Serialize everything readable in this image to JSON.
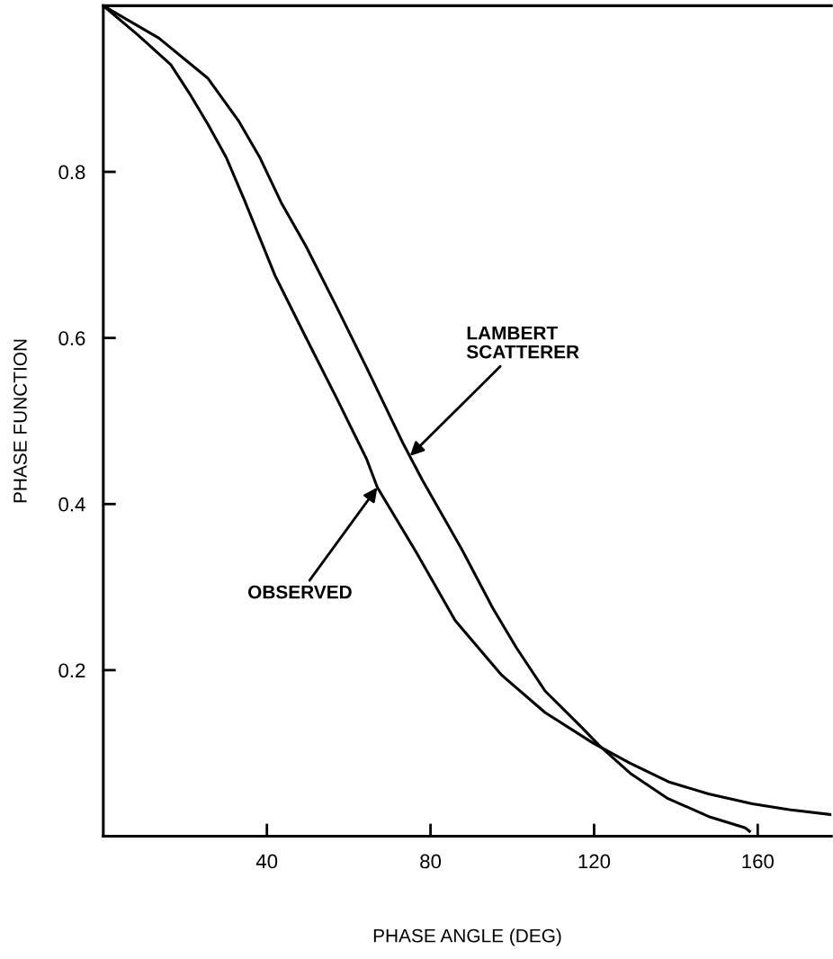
{
  "chart_data": {
    "type": "line",
    "xlabel": "PHASE ANGLE (DEG)",
    "ylabel": "PHASE FUNCTION",
    "xlim": [
      0,
      178
    ],
    "ylim": [
      0,
      1
    ],
    "xticks": [
      40,
      80,
      120,
      160
    ],
    "yticks": [
      0.2,
      0.4,
      {
        "value": 0.6,
        "label": "0.6"
      },
      0.8
    ],
    "grid": false,
    "legend": false,
    "marker": "none",
    "line_style": "solid",
    "series": [
      {
        "color": "#000000",
        "x": [
          0,
          13.6,
          25.5,
          33,
          38.2,
          43.5,
          49.5,
          57,
          64.4,
          73.4,
          78,
          87.7,
          95.2,
          101,
          108,
          117,
          121.3,
          128.8,
          137.8,
          148.4,
          157,
          158
        ],
        "values": [
          1.0,
          0.961,
          0.913,
          0.862,
          0.818,
          0.763,
          0.711,
          0.638,
          0.564,
          0.472,
          0.429,
          0.345,
          0.275,
          0.227,
          0.175,
          0.131,
          0.109,
          0.076,
          0.046,
          0.023,
          0.01,
          0.006
        ]
      },
      {
        "color": "#000000",
        "x": [
          0,
          8.4,
          16.5,
          21,
          25.5,
          30,
          34.5,
          42,
          49.5,
          57,
          64.4,
          67,
          76.5,
          86,
          97.4,
          108,
          119.8,
          128.8,
          138.5,
          148,
          158.7,
          167.7,
          178
        ],
        "values": [
          1.0,
          0.965,
          0.929,
          0.895,
          0.858,
          0.818,
          0.766,
          0.675,
          0.601,
          0.528,
          0.454,
          0.42,
          0.342,
          0.26,
          0.194,
          0.149,
          0.112,
          0.088,
          0.065,
          0.051,
          0.039,
          0.032,
          0.026
        ]
      }
    ],
    "annotations": [
      {
        "text": "LAMBERT\nSCATTERER",
        "x": 75,
        "y": 0.458
      },
      {
        "text": "OBSERVED",
        "x": 67,
        "y": 0.42
      }
    ]
  }
}
